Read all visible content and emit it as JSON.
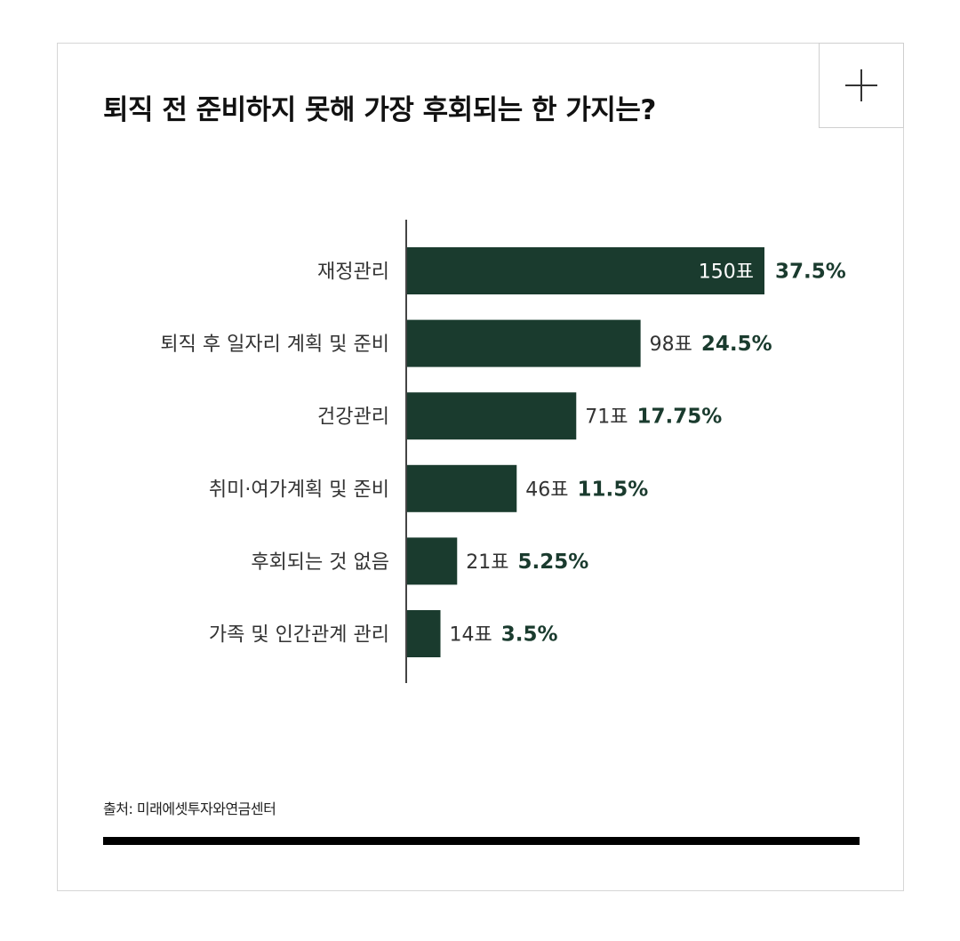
{
  "title": "퇴직 전 준비하지 못해 가장 후회되는 한 가지는?",
  "expand_icon": "plus-icon",
  "source": "출처: 미래에셋투자와연금센터",
  "colors": {
    "bar": "#1a3b2e",
    "percent": "#1a3b2e"
  },
  "chart_data": {
    "type": "bar",
    "orientation": "horizontal",
    "title": "퇴직 전 준비하지 못해 가장 후회되는 한 가지는?",
    "categories": [
      "재정관리",
      "퇴직 후 일자리 계획 및 준비",
      "건강관리",
      "취미·여가계획 및 준비",
      "후회되는 것 없음",
      "가족 및 인간관계 관리"
    ],
    "values": [
      150,
      98,
      71,
      46,
      21,
      14
    ],
    "value_labels": [
      "150표",
      "98표",
      "71표",
      "46표",
      "21표",
      "14표"
    ],
    "percent_labels": [
      "37.5%",
      "24.5%",
      "17.75%",
      "11.5%",
      "5.25%",
      "3.5%"
    ],
    "xlim": [
      0,
      150
    ],
    "grid": false,
    "legend": "none"
  }
}
